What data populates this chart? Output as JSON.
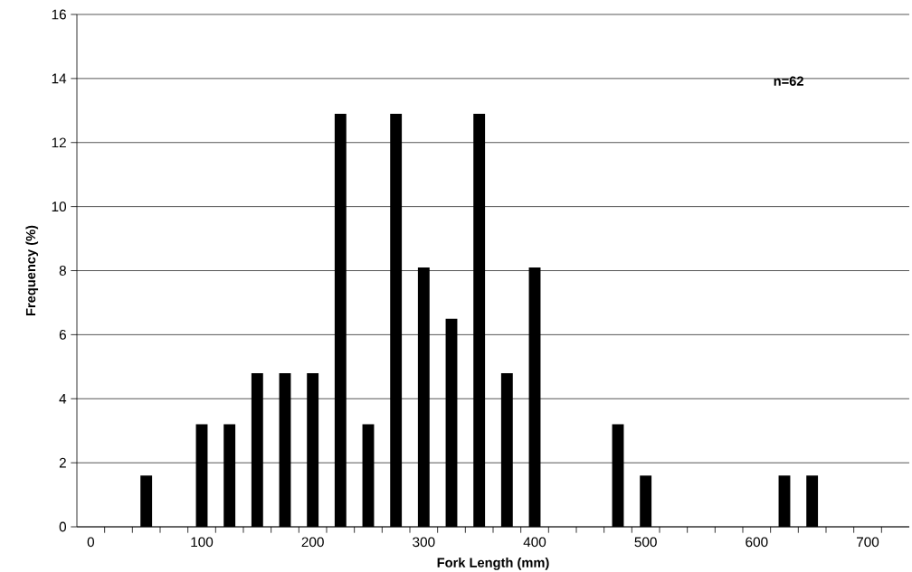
{
  "chart_data": {
    "type": "bar",
    "xlabel": "Fork Length (mm)",
    "ylabel": "Frequency (%)",
    "categories": [
      "0",
      null,
      null,
      null,
      "100",
      null,
      null,
      null,
      "200",
      null,
      null,
      null,
      "300",
      null,
      null,
      null,
      "400",
      null,
      null,
      null,
      "500",
      null,
      null,
      null,
      "600",
      null,
      null,
      null,
      "700",
      null
    ],
    "values": [
      null,
      null,
      1.6,
      null,
      3.2,
      3.2,
      4.8,
      4.8,
      4.8,
      12.9,
      3.2,
      12.9,
      8.1,
      6.5,
      12.9,
      4.8,
      8.1,
      null,
      null,
      3.2,
      1.6,
      null,
      null,
      null,
      null,
      1.6,
      1.6,
      null,
      null,
      null
    ],
    "color": "#000000",
    "ylim": [
      0,
      16
    ],
    "yticks": [
      0,
      2,
      4,
      6,
      8,
      10,
      12,
      14,
      16
    ],
    "grid": "y",
    "annotations": [
      "n=62"
    ]
  }
}
